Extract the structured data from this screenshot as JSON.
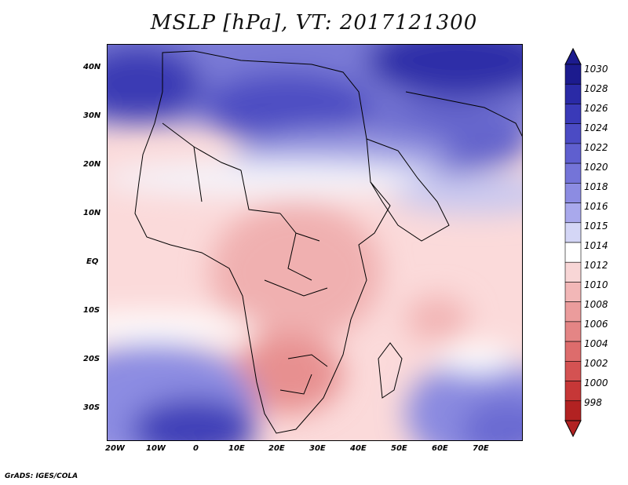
{
  "title": "MSLP [hPa], VT: 2017121300",
  "footer": "GrADS: IGES/COLA",
  "lat_labels": [
    "40N",
    "30N",
    "20N",
    "10N",
    "EQ",
    "10S",
    "20S",
    "30S"
  ],
  "lon_labels": [
    "20W",
    "10W",
    "0",
    "10E",
    "20E",
    "30E",
    "40E",
    "50E",
    "60E",
    "70E"
  ],
  "colorbar": {
    "labels": [
      "1030",
      "1028",
      "1026",
      "1024",
      "1022",
      "1020",
      "1018",
      "1016",
      "1015",
      "1014",
      "1012",
      "1010",
      "1008",
      "1006",
      "1004",
      "1002",
      "1000",
      "998"
    ],
    "colors": [
      "#1c1b8e",
      "#2a2aa6",
      "#3a3ab8",
      "#4b4bc4",
      "#5f5fcf",
      "#7474d8",
      "#8c8ce2",
      "#a9a9ec",
      "#d4d6f6",
      "#ffffff",
      "#f8d6d6",
      "#f2b7b7",
      "#eb9c9c",
      "#e48585",
      "#dd6c6c",
      "#d45252",
      "#c63737",
      "#b22222"
    ]
  }
}
